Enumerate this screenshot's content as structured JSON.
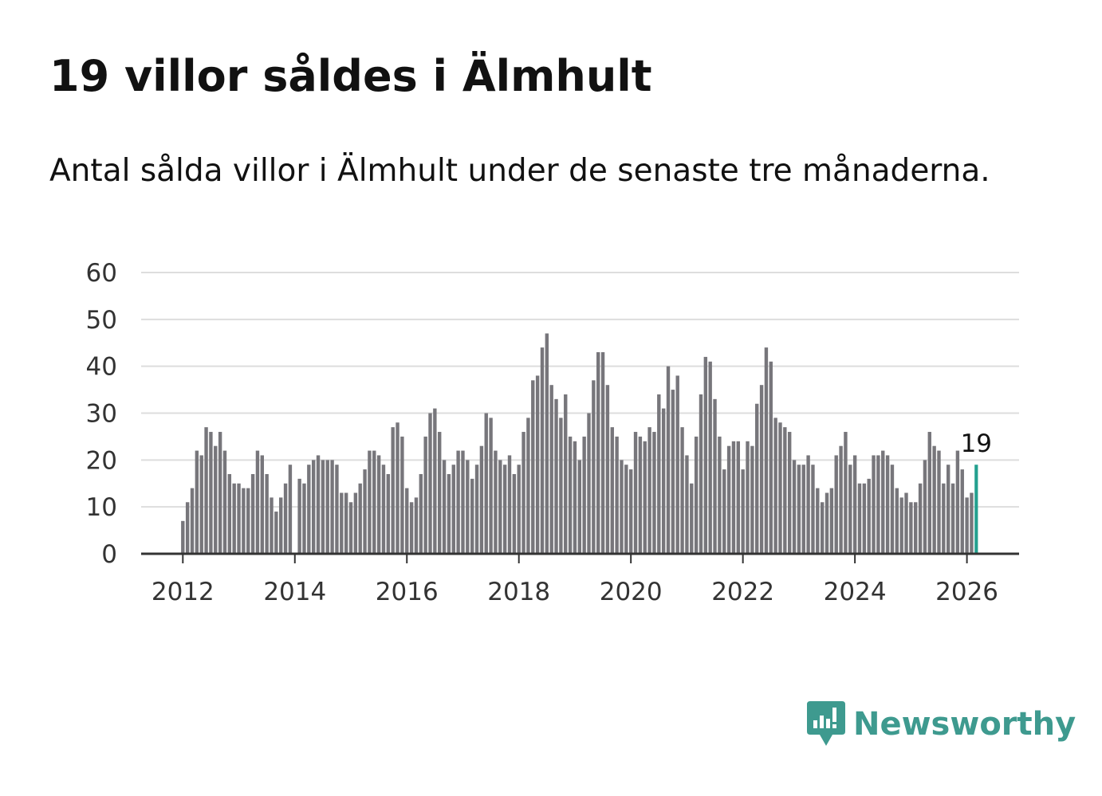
{
  "title": "19 villor såldes i Älmhult",
  "subtitle": "Antal sålda villor i Älmhult under de senaste tre månaderna.",
  "brand": {
    "name": "Newsworthy",
    "icon": "newsworthy-logo-icon"
  },
  "colors": {
    "bar": "#77767b",
    "highlight": "#24a08f",
    "grid": "#dddddd",
    "axis": "#333333",
    "brand": "#3e9a8f"
  },
  "chart_data": {
    "type": "bar",
    "title": "",
    "xlabel": "",
    "ylabel": "",
    "ylim": [
      0,
      60
    ],
    "yticks": [
      0,
      10,
      20,
      30,
      40,
      50,
      60
    ],
    "xticks": [
      "2012",
      "2014",
      "2016",
      "2018",
      "2020",
      "2022",
      "2024",
      "2026"
    ],
    "x_start": "2012-01",
    "x_end": "2026-03",
    "grid": true,
    "annotation": {
      "label": "19",
      "x": "2026-03"
    },
    "series": [
      {
        "values": [
          7,
          11,
          14,
          22,
          21,
          27,
          26,
          23,
          26,
          22,
          17,
          15,
          15,
          14,
          14,
          17,
          22,
          21,
          17,
          12,
          9,
          12,
          15,
          19,
          0,
          16,
          15,
          19,
          20,
          21,
          20,
          20,
          20,
          19,
          13,
          13,
          11,
          13,
          15,
          18,
          22,
          22,
          21,
          19,
          17,
          27,
          28,
          25,
          14,
          11,
          12,
          17,
          25,
          30,
          31,
          26,
          20,
          17,
          19,
          22,
          22,
          20,
          16,
          19,
          23,
          30,
          29,
          22,
          20,
          19,
          21,
          17,
          19,
          26,
          29,
          37,
          38,
          44,
          47,
          36,
          33,
          29,
          34,
          25,
          24,
          20,
          25,
          30,
          37,
          43,
          43,
          36,
          27,
          25,
          20,
          19,
          18,
          26,
          25,
          24,
          27,
          26,
          34,
          31,
          40,
          35,
          38,
          27,
          21,
          15,
          25,
          34,
          42,
          41,
          33,
          25,
          18,
          23,
          24,
          24,
          18,
          24,
          23,
          32,
          36,
          44,
          41,
          29,
          28,
          27,
          26,
          20,
          19,
          19,
          21,
          19,
          14,
          11,
          13,
          14,
          21,
          23,
          26,
          19,
          21,
          15,
          15,
          16,
          21,
          21,
          22,
          21,
          19,
          14,
          12,
          13,
          11,
          11,
          15,
          20,
          26,
          23,
          22,
          15,
          19,
          15,
          22,
          18,
          12,
          13,
          19
        ]
      }
    ]
  }
}
